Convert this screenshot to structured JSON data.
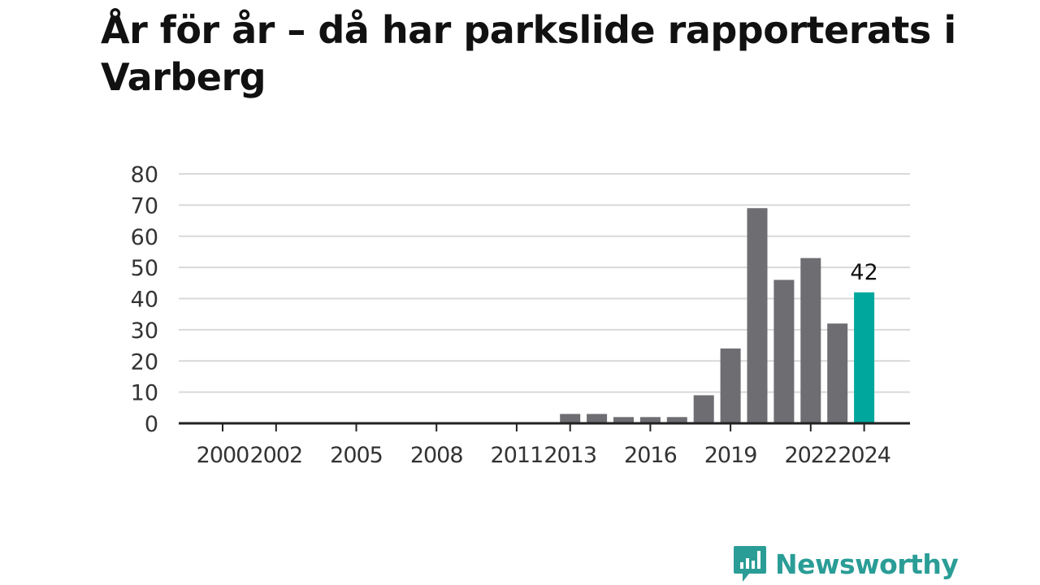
{
  "title": "År för år – då har parkslide rapporterats i Varberg",
  "brand": {
    "name": "Newsworthy",
    "icon": "newsworthy-logo-icon",
    "color": "#2a9d96"
  },
  "colors": {
    "bar": "#6e6d72",
    "highlight": "#00a79d",
    "grid": "#d9d9d9",
    "axis": "#222222",
    "text": "#333333"
  },
  "chart_data": {
    "type": "bar",
    "categories": [
      "2000",
      "2001",
      "2002",
      "2003",
      "2004",
      "2005",
      "2006",
      "2007",
      "2008",
      "2009",
      "2010",
      "2011",
      "2012",
      "2013",
      "2014",
      "2015",
      "2016",
      "2017",
      "2018",
      "2019",
      "2020",
      "2021",
      "2022",
      "2023",
      "2024"
    ],
    "values": [
      0,
      0,
      0,
      0,
      0,
      0,
      0,
      0,
      0,
      0,
      0,
      0,
      0,
      3,
      3,
      2,
      2,
      2,
      9,
      24,
      69,
      46,
      53,
      32,
      42
    ],
    "x_tick_labels": [
      "2000",
      "2002",
      "2005",
      "2008",
      "2011",
      "2013",
      "2016",
      "2019",
      "2022",
      "2024"
    ],
    "ylim": [
      0,
      80
    ],
    "y_ticks": [
      0,
      10,
      20,
      30,
      40,
      50,
      60,
      70,
      80
    ],
    "highlight": {
      "category": "2024",
      "label": "42"
    },
    "xlabel": "",
    "ylabel": "",
    "grid": true,
    "legend": "none"
  }
}
